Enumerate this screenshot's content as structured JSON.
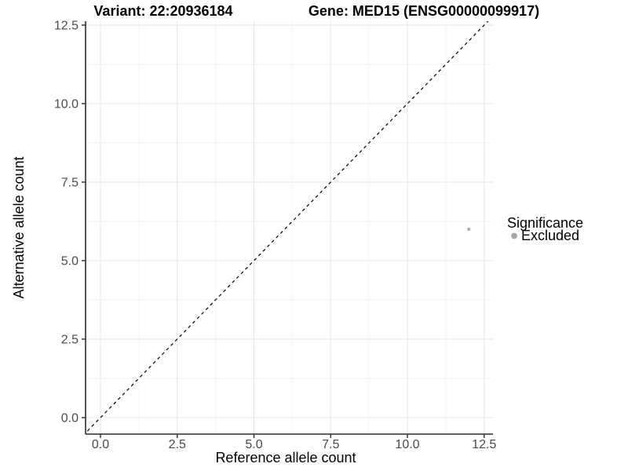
{
  "figure": {
    "background": "#ffffff"
  },
  "chart_data": {
    "type": "scatter",
    "titles": {
      "left": "Variant: 22:20936184",
      "right": "Gene: MED15 (ENSG00000099917)"
    },
    "xlabel": "Reference allele count",
    "ylabel": "Alternative allele count",
    "xlim": [
      -0.55,
      13.0
    ],
    "ylim": [
      -0.55,
      12.65
    ],
    "grid": "major+minor",
    "x_ticks": [
      {
        "v": 0,
        "label": "0.0"
      },
      {
        "v": 2.5,
        "label": "2.5"
      },
      {
        "v": 5,
        "label": "5.0"
      },
      {
        "v": 7.5,
        "label": "7.5"
      },
      {
        "v": 10,
        "label": "10.0"
      },
      {
        "v": 12.5,
        "label": "12.5"
      }
    ],
    "y_ticks": [
      {
        "v": 0,
        "label": "0.0"
      },
      {
        "v": 2.5,
        "label": "2.5"
      },
      {
        "v": 5,
        "label": "5.0"
      },
      {
        "v": 7.5,
        "label": "7.5"
      },
      {
        "v": 10,
        "label": "10.0"
      },
      {
        "v": 12.5,
        "label": "12.5"
      }
    ],
    "minor_ticks": [
      1.25,
      3.75,
      6.25,
      8.75,
      11.25
    ],
    "abline": {
      "slope": 1,
      "intercept": 0,
      "style": "dashed",
      "color": "#000000"
    },
    "series": [
      {
        "name": "Excluded",
        "color": "#b3b3b3",
        "points": [
          {
            "x": 12,
            "y": 6
          }
        ]
      }
    ],
    "legend": {
      "title": "Significance",
      "position": "right",
      "items": [
        {
          "label": "Excluded",
          "color": "#a6a6a6"
        }
      ]
    },
    "colors": {
      "axis": "#2b2b2b",
      "tick_label": "#4a4a4a",
      "grid_major": "#e6e6e6",
      "grid_minor": "#f3f3f3",
      "point": "#b3b3b3",
      "background": "#ffffff"
    }
  }
}
